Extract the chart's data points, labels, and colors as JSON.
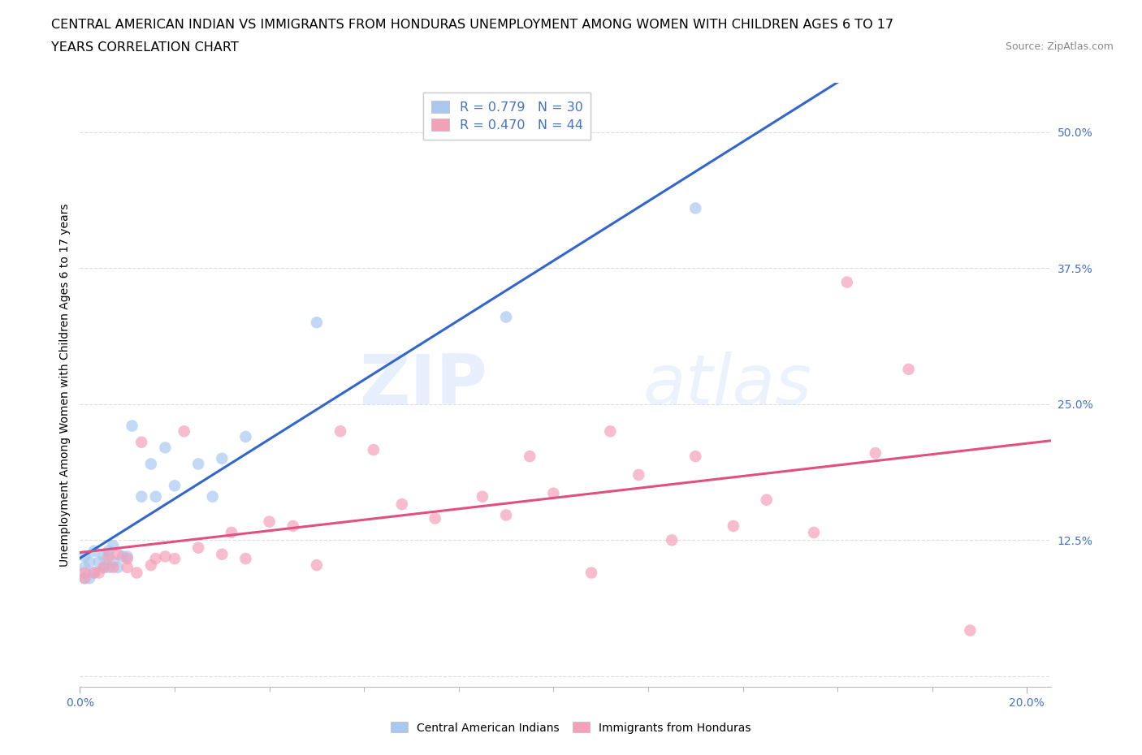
{
  "title_line1": "CENTRAL AMERICAN INDIAN VS IMMIGRANTS FROM HONDURAS UNEMPLOYMENT AMONG WOMEN WITH CHILDREN AGES 6 TO 17",
  "title_line2": "YEARS CORRELATION CHART",
  "source": "Source: ZipAtlas.com",
  "ylabel": "Unemployment Among Women with Children Ages 6 to 17 years",
  "xlim": [
    0.0,
    0.205
  ],
  "ylim": [
    -0.01,
    0.545
  ],
  "x_ticks": [
    0.0,
    0.2
  ],
  "x_tick_labels": [
    "0.0%",
    "20.0%"
  ],
  "y_ticks": [
    0.0,
    0.125,
    0.25,
    0.375,
    0.5
  ],
  "y_tick_labels": [
    "",
    "12.5%",
    "25.0%",
    "37.5%",
    "50.0%"
  ],
  "watermark_zip": "ZIP",
  "watermark_atlas": "atlas",
  "legend_r1": "R = 0.779",
  "legend_n1": "N = 30",
  "legend_r2": "R = 0.470",
  "legend_n2": "N = 44",
  "blue_color": "#A8C8F0",
  "blue_line_color": "#3366CC",
  "pink_color": "#F4A0B8",
  "pink_line_color": "#E05080",
  "legend_value_color": "#4472C4",
  "tick_color": "#4472C4",
  "blue_scatter_x": [
    0.001,
    0.001,
    0.001,
    0.002,
    0.002,
    0.003,
    0.003,
    0.004,
    0.005,
    0.005,
    0.006,
    0.006,
    0.007,
    0.007,
    0.008,
    0.009,
    0.01,
    0.011,
    0.013,
    0.015,
    0.016,
    0.018,
    0.02,
    0.025,
    0.028,
    0.03,
    0.035,
    0.05,
    0.09,
    0.13
  ],
  "blue_scatter_y": [
    0.09,
    0.1,
    0.11,
    0.09,
    0.105,
    0.095,
    0.115,
    0.105,
    0.1,
    0.11,
    0.1,
    0.115,
    0.105,
    0.12,
    0.1,
    0.11,
    0.11,
    0.23,
    0.165,
    0.195,
    0.165,
    0.21,
    0.175,
    0.195,
    0.165,
    0.2,
    0.22,
    0.325,
    0.33,
    0.43
  ],
  "pink_scatter_x": [
    0.001,
    0.001,
    0.003,
    0.004,
    0.005,
    0.006,
    0.007,
    0.008,
    0.01,
    0.01,
    0.012,
    0.013,
    0.015,
    0.016,
    0.018,
    0.02,
    0.022,
    0.025,
    0.03,
    0.032,
    0.035,
    0.04,
    0.045,
    0.05,
    0.055,
    0.062,
    0.068,
    0.075,
    0.085,
    0.09,
    0.095,
    0.1,
    0.108,
    0.112,
    0.118,
    0.125,
    0.13,
    0.138,
    0.145,
    0.155,
    0.162,
    0.168,
    0.175,
    0.188
  ],
  "pink_scatter_y": [
    0.09,
    0.095,
    0.095,
    0.095,
    0.1,
    0.11,
    0.1,
    0.112,
    0.1,
    0.108,
    0.095,
    0.215,
    0.102,
    0.108,
    0.11,
    0.108,
    0.225,
    0.118,
    0.112,
    0.132,
    0.108,
    0.142,
    0.138,
    0.102,
    0.225,
    0.208,
    0.158,
    0.145,
    0.165,
    0.148,
    0.202,
    0.168,
    0.095,
    0.225,
    0.185,
    0.125,
    0.202,
    0.138,
    0.162,
    0.132,
    0.362,
    0.205,
    0.282,
    0.042
  ],
  "grid_color": "#DDDDDD",
  "background_color": "#FFFFFF",
  "title_fontsize": 11.5,
  "axis_label_fontsize": 10,
  "tick_fontsize": 10,
  "source_fontsize": 9,
  "marker_size": 110
}
